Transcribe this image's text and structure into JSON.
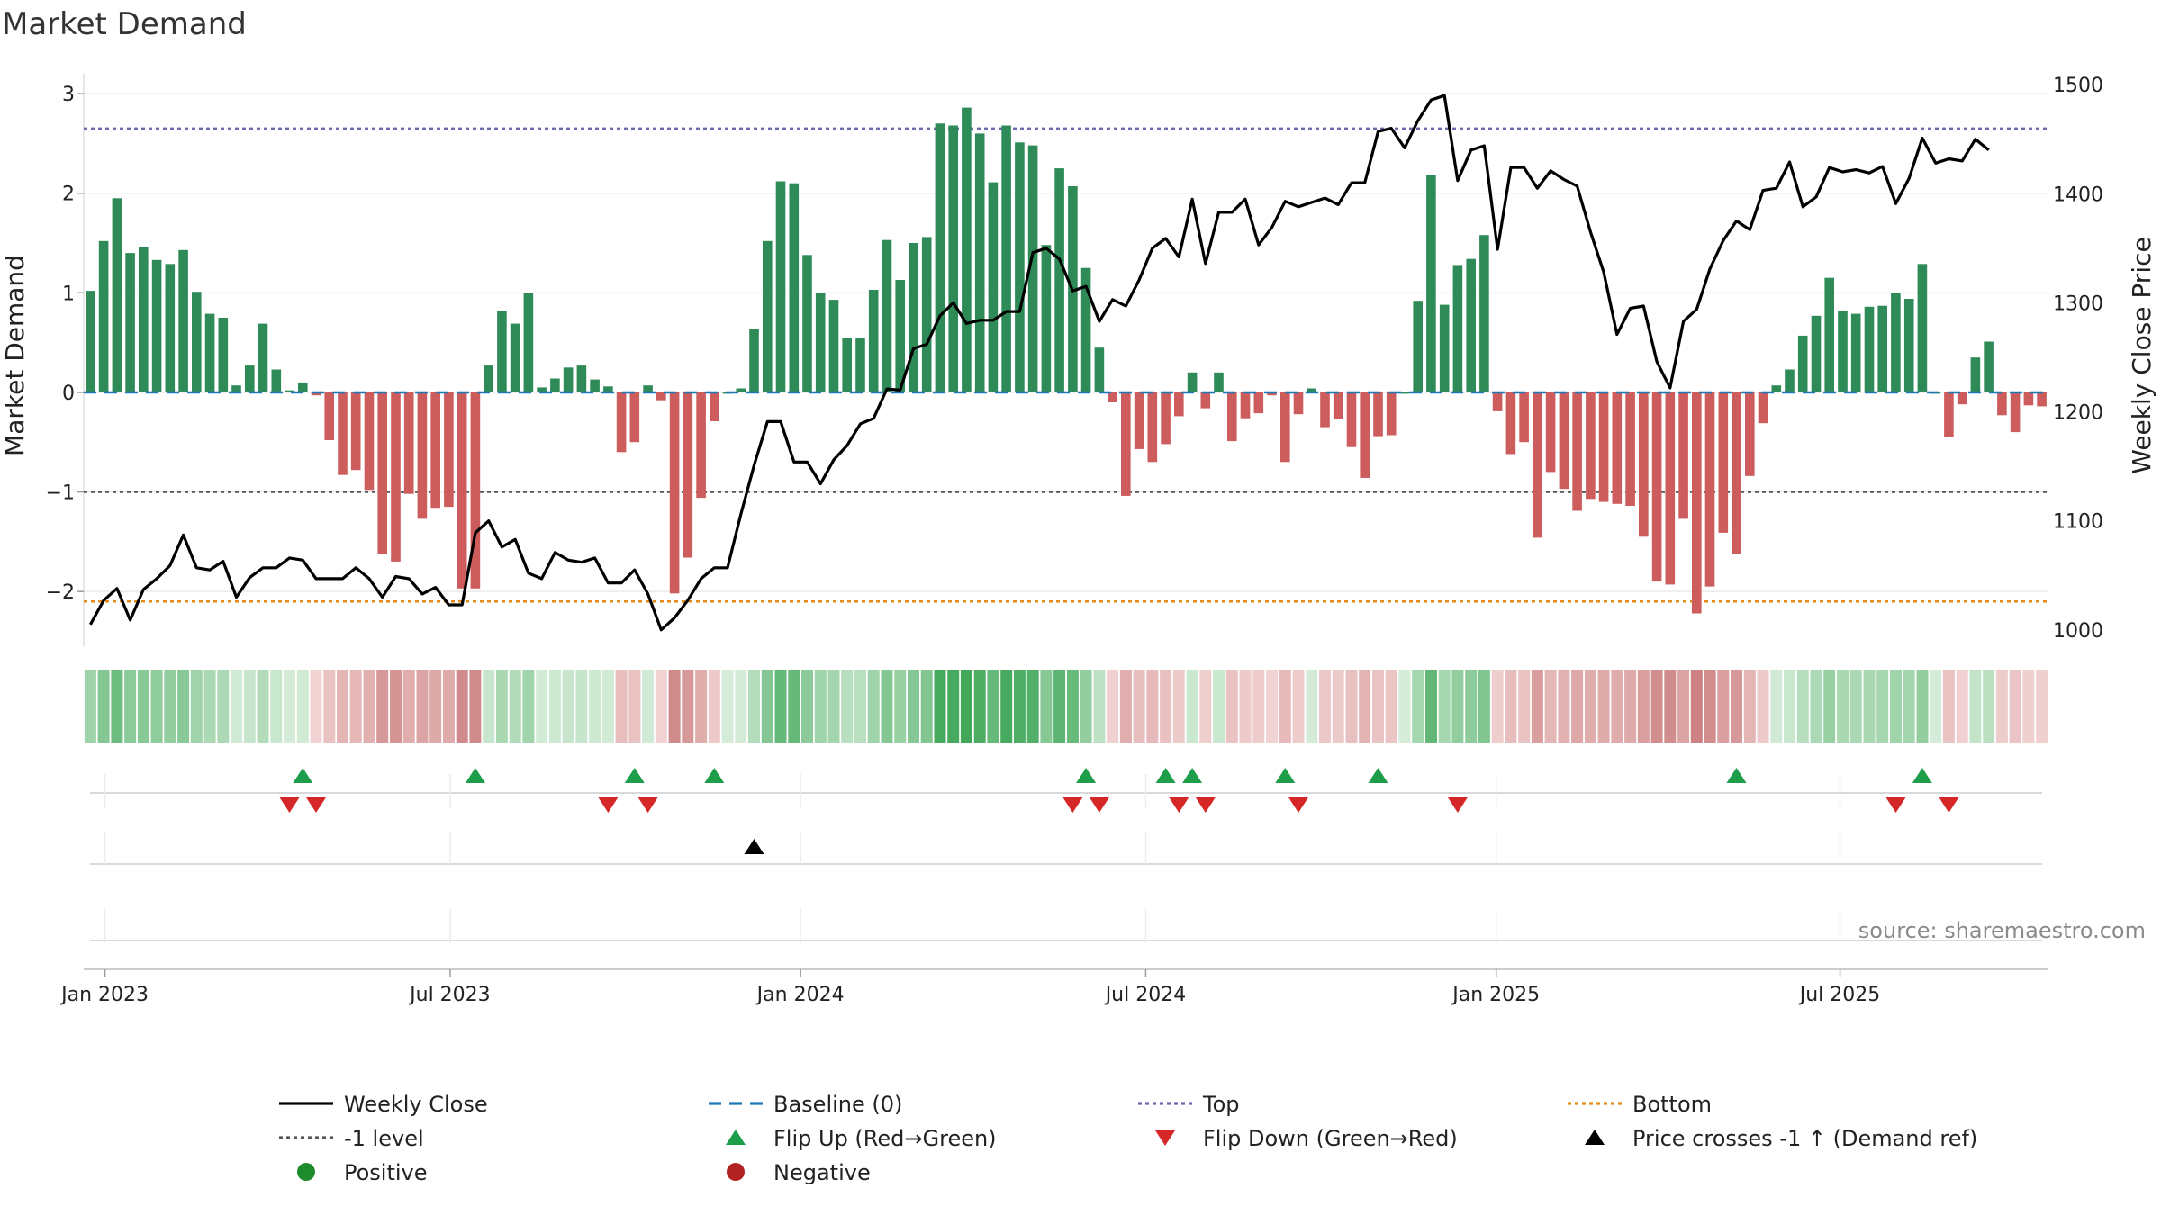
{
  "chart_data": {
    "type": "bar+line",
    "title": "Market Demand",
    "ylabel_left": "Market Demand",
    "ylabel_right": "Weekly Close Price",
    "ylim_left": [
      -2.55,
      3.2
    ],
    "ylim_right": [
      985,
      1510
    ],
    "yticks_left": [
      {
        "v": 3,
        "t": "3"
      },
      {
        "v": 2,
        "t": "2"
      },
      {
        "v": 1,
        "t": "1"
      },
      {
        "v": 0,
        "t": "0"
      },
      {
        "v": -1,
        "t": "−1"
      },
      {
        "v": -2,
        "t": "−2"
      }
    ],
    "yticks_right": [
      {
        "v": 1500,
        "t": "1500"
      },
      {
        "v": 1400,
        "t": "1400"
      },
      {
        "v": 1300,
        "t": "1300"
      },
      {
        "v": 1200,
        "t": "1200"
      },
      {
        "v": 1100,
        "t": "1100"
      },
      {
        "v": 1000,
        "t": "1000"
      }
    ],
    "xticks": [
      {
        "week": 1.6,
        "t": "Jan 2023"
      },
      {
        "week": 27.6,
        "t": "Jul 2023"
      },
      {
        "week": 54,
        "t": "Jan 2024"
      },
      {
        "week": 80,
        "t": "Jul 2024"
      },
      {
        "week": 106.4,
        "t": "Jan 2025"
      },
      {
        "week": 132.3,
        "t": "Jul 2025"
      }
    ],
    "reference_lines": {
      "top": 2.65,
      "minus_one": -1,
      "bottom": -2.1,
      "baseline": 0
    },
    "demand": [
      1.02,
      1.52,
      1.95,
      1.4,
      1.46,
      1.33,
      1.29,
      1.43,
      1.01,
      0.79,
      0.75,
      0.07,
      0.27,
      0.69,
      0.23,
      0.02,
      0.1,
      -0.03,
      -0.48,
      -0.83,
      -0.78,
      -0.98,
      -1.62,
      -1.7,
      -1.02,
      -1.27,
      -1.16,
      -1.15,
      -1.97,
      -1.97,
      0.27,
      0.82,
      0.69,
      1.0,
      0.05,
      0.14,
      0.25,
      0.27,
      0.13,
      0.06,
      -0.6,
      -0.5,
      0.07,
      -0.08,
      -2.02,
      -1.66,
      -1.06,
      -0.29,
      0.0,
      0.04,
      0.64,
      1.52,
      2.12,
      2.1,
      1.38,
      1.0,
      0.93,
      0.55,
      0.55,
      1.03,
      1.53,
      1.13,
      1.5,
      1.56,
      2.7,
      2.68,
      2.86,
      2.6,
      2.11,
      2.68,
      2.51,
      2.48,
      1.48,
      2.25,
      2.07,
      1.25,
      0.45,
      -0.1,
      -1.04,
      -0.57,
      -0.7,
      -0.52,
      -0.24,
      0.2,
      -0.16,
      0.2,
      -0.49,
      -0.26,
      -0.21,
      -0.03,
      -0.7,
      -0.22,
      0.04,
      -0.35,
      -0.27,
      -0.55,
      -0.86,
      -0.44,
      -0.43,
      0.0,
      0.92,
      2.18,
      0.88,
      1.28,
      1.34,
      1.58,
      -0.19,
      -0.62,
      -0.5,
      -1.46,
      -0.8,
      -0.97,
      -1.19,
      -1.07,
      -1.1,
      -1.12,
      -1.14,
      -1.45,
      -1.9,
      -1.93,
      -1.27,
      -2.22,
      -1.95,
      -1.41,
      -1.62,
      -0.84,
      -0.31,
      0.07,
      0.23,
      0.57,
      0.77,
      1.15,
      0.82,
      0.79,
      0.86,
      0.87,
      1.0,
      0.94,
      1.29,
      0.0,
      -0.45,
      -0.12,
      0.35,
      0.51,
      -0.23,
      -0.4,
      -0.13,
      -0.14
    ],
    "close": [
      1005,
      1027,
      1038,
      1009,
      1037,
      1047,
      1059,
      1087,
      1057,
      1055,
      1063,
      1030,
      1048,
      1057,
      1057,
      1066,
      1064,
      1047,
      1047,
      1047,
      1057,
      1047,
      1030,
      1049,
      1047,
      1033,
      1039,
      1023,
      1023,
      1089,
      1100,
      1076,
      1083,
      1052,
      1047,
      1071,
      1064,
      1062,
      1066,
      1043,
      1043,
      1055,
      1033,
      1000,
      1011,
      1027,
      1047,
      1057,
      1057,
      1106,
      1151,
      1191,
      1191,
      1154,
      1154,
      1134,
      1156,
      1169,
      1189,
      1194,
      1221,
      1220,
      1258,
      1262,
      1288,
      1300,
      1281,
      1284,
      1284,
      1292,
      1292,
      1346,
      1350,
      1340,
      1311,
      1315,
      1283,
      1303,
      1297,
      1321,
      1350,
      1359,
      1342,
      1395,
      1336,
      1383,
      1383,
      1395,
      1353,
      1369,
      1393,
      1388,
      1392,
      1396,
      1390,
      1410,
      1410,
      1457,
      1460,
      1442,
      1467,
      1486,
      1490,
      1412,
      1440,
      1444,
      1349,
      1424,
      1424,
      1405,
      1421,
      1413,
      1407,
      1365,
      1328,
      1271,
      1295,
      1297,
      1246,
      1222,
      1283,
      1294,
      1331,
      1357,
      1375,
      1367,
      1403,
      1405,
      1429,
      1388,
      1397,
      1424,
      1420,
      1422,
      1419,
      1425,
      1391,
      1414,
      1451,
      1428,
      1432,
      1430,
      1450,
      1440
    ],
    "demand_flags": {
      "flip_up": [
        16,
        29,
        41,
        47,
        75,
        81,
        83,
        90,
        97,
        124,
        138
      ],
      "flip_down": [
        15,
        17,
        39,
        42,
        74,
        76,
        82,
        84,
        91,
        103,
        136,
        140
      ],
      "price_cross": [
        50
      ]
    },
    "colors": {
      "pos_bar": "#2e8b57",
      "neg_bar": "#cd5c5c",
      "close": "#000000",
      "baseline": "#1f77b4",
      "top": "#6a6ab0",
      "minus_one": "#555555",
      "bottom": "#e38c1a",
      "flip_up": "#1e9e4a",
      "flip_down": "#d62728",
      "price_cross": "#000000",
      "positive": "#1e8c2c",
      "negative": "#b22222"
    },
    "legend": [
      {
        "label": "Weekly Close",
        "kind": "line",
        "color": "#000000",
        "dash": ""
      },
      {
        "label": "Baseline (0)",
        "kind": "line",
        "color": "#1f77b4",
        "dash": "14 9"
      },
      {
        "label": "Top",
        "kind": "line",
        "color": "#6a6ab0",
        "dash": "4 4"
      },
      {
        "label": "Bottom",
        "kind": "line",
        "color": "#e38c1a",
        "dash": "4 4"
      },
      {
        "label": "-1 level",
        "kind": "line",
        "color": "#555555",
        "dash": "4 4"
      },
      {
        "label": "Flip Up (Red→Green)",
        "kind": "up",
        "color": "#1e9e4a"
      },
      {
        "label": "Flip Down (Green→Red)",
        "kind": "down",
        "color": "#d62728"
      },
      {
        "label": "Price crosses -1 ↑ (Demand ref)",
        "kind": "up",
        "color": "#000000"
      },
      {
        "label": "Positive",
        "kind": "dot",
        "color": "#1e8c2c"
      },
      {
        "label": "Negative",
        "kind": "dot",
        "color": "#b22222"
      }
    ],
    "source": "source: sharemaestro.com"
  }
}
